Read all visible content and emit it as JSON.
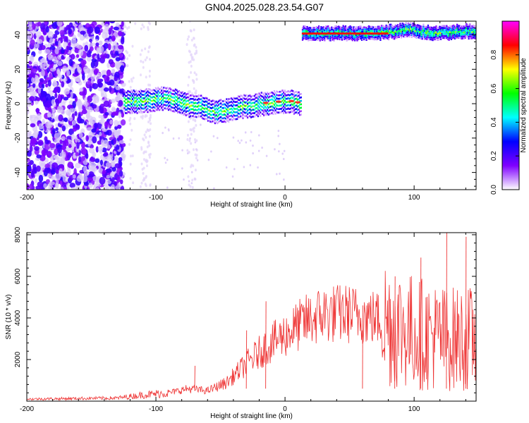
{
  "title": "GN04.2025.028.23.54.G07",
  "chart_data": [
    {
      "type": "heatmap",
      "xlabel": "Height of straight line (km)",
      "ylabel": "Frequency (Hz)",
      "xlim": [
        -200,
        148
      ],
      "ylim": [
        -50,
        48
      ],
      "xticks": [
        -200,
        -100,
        0,
        100
      ],
      "yticks": [
        40,
        20,
        0,
        -20,
        -40
      ],
      "colorbar": {
        "label": "Normalized spectral amplitude",
        "ticks": [
          "0.0",
          "0.2",
          "0.4",
          "0.6",
          "0.8"
        ],
        "tick_values": [
          0.0,
          0.2,
          0.4,
          0.6,
          0.8
        ],
        "range": [
          0,
          1
        ],
        "colors": [
          "#ffffff",
          "#7f00ff",
          "#0000ff",
          "#00ffff",
          "#00ff00",
          "#ffff00",
          "#ff0000",
          "#ff00ff"
        ]
      },
      "ridge": {
        "x": [
          -125,
          -115,
          -105,
          -95,
          -85,
          -75,
          -65,
          -55,
          -45,
          -35,
          -25,
          -15,
          -5,
          0,
          5,
          12
        ],
        "y": [
          1,
          1,
          2,
          3,
          2,
          -1,
          -2,
          -5,
          -4,
          -2,
          -1,
          0,
          1,
          1,
          1,
          0
        ]
      },
      "ridge_high": {
        "x": [
          13,
          30,
          50,
          70,
          85,
          95,
          105,
          115,
          125,
          135,
          148
        ],
        "y": [
          41,
          41,
          41,
          41,
          42,
          43,
          42,
          41,
          41,
          42,
          42
        ]
      }
    },
    {
      "type": "line",
      "xlabel": "Height of straight line (km)",
      "ylabel": "SNR (10 * v/v)",
      "xlim": [
        -200,
        148
      ],
      "ylim": [
        0,
        8100
      ],
      "xticks": [
        -200,
        -100,
        0,
        100
      ],
      "yticks": [
        2000,
        4000,
        6000,
        8000
      ],
      "color": "#ee3333",
      "envelope": {
        "x": [
          -200,
          -130,
          -110,
          -90,
          -75,
          -60,
          -45,
          -30,
          -15,
          0,
          15,
          30,
          50,
          70,
          80,
          95,
          110,
          125,
          148
        ],
        "y": [
          100,
          150,
          300,
          400,
          600,
          500,
          900,
          1800,
          2600,
          3200,
          3800,
          4200,
          4200,
          4000,
          3800,
          3400,
          3200,
          3000,
          3000
        ]
      },
      "peaks": {
        "x": [
          -70,
          -30,
          -15,
          60,
          85,
          105,
          125,
          140
        ],
        "y": [
          1700,
          3400,
          4800,
          4600,
          6000,
          6900,
          8200,
          7900
        ]
      }
    }
  ]
}
